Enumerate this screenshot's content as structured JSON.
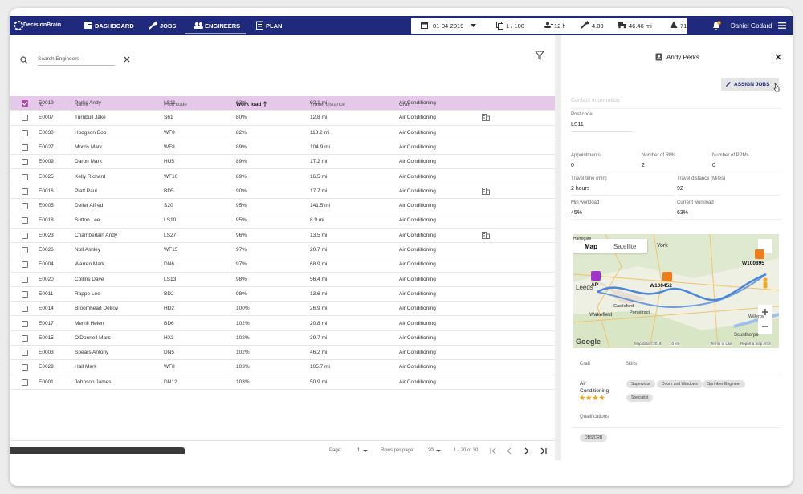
{
  "nav": {
    "brand": "DecisionBrain",
    "tabs": [
      "DASHBOARD",
      "JOBS",
      "ENGINEERS",
      "PLAN"
    ],
    "date": "01-04-2019",
    "jobs": "1 / 100",
    "hours": "12 h",
    "rating": "4.00",
    "distance": "46.46 mi",
    "alerts": "71",
    "user": "Daniel Godard"
  },
  "search": {
    "placeholder": "Search Engineers"
  },
  "table": {
    "columns": [
      "ID",
      "Name",
      "Post code",
      "Work load",
      "Travel distance",
      "Craft"
    ],
    "rows": [
      [
        "E0019",
        "Perks Andy",
        "LS11",
        "63%",
        "92.1 mi",
        "Air Conditioning"
      ],
      [
        "E0007",
        "Turnbull Jake",
        "S61",
        "80%",
        "12.8 mi",
        "Air Conditioning"
      ],
      [
        "E0030",
        "Hodgson Bob",
        "WF8",
        "82%",
        "118.2 mi",
        "Air Conditioning"
      ],
      [
        "E0027",
        "Morris Mark",
        "WF8",
        "89%",
        "104.9 mi",
        "Air Conditioning"
      ],
      [
        "E0009",
        "Daron Mark",
        "HU5",
        "89%",
        "17.2 mi",
        "Air Conditioning"
      ],
      [
        "E0025",
        "Kelly Richard",
        "WF10",
        "89%",
        "16.5 mi",
        "Air Conditioning"
      ],
      [
        "E0016",
        "Platt Paul",
        "BD5",
        "90%",
        "17.7 mi",
        "Air Conditioning"
      ],
      [
        "E0005",
        "Deller Alfred",
        "S20",
        "95%",
        "141.5 mi",
        "Air Conditioning"
      ],
      [
        "E0018",
        "Sutton Lee",
        "LS10",
        "95%",
        "8.9 mi",
        "Air Conditioning"
      ],
      [
        "E0023",
        "Chamberlain Andy",
        "LS27",
        "96%",
        "13.5 mi",
        "Air Conditioning"
      ],
      [
        "E0026",
        "Noll Ashley",
        "WF15",
        "97%",
        "20.7 mi",
        "Air Conditioning"
      ],
      [
        "E0004",
        "Warren Mark",
        "DN6",
        "97%",
        "68.9 mi",
        "Air Conditioning"
      ],
      [
        "E0020",
        "Collins Dave",
        "LS13",
        "98%",
        "56.4 mi",
        "Air Conditioning"
      ],
      [
        "E0011",
        "Rappe Lee",
        "BD2",
        "98%",
        "13.6 mi",
        "Air Conditioning"
      ],
      [
        "E0014",
        "Broomhead Delroy",
        "HD2",
        "100%",
        "26.9 mi",
        "Air Conditioning"
      ],
      [
        "E0017",
        "Merrill Helen",
        "BD6",
        "102%",
        "20.8 mi",
        "Air Conditioning"
      ],
      [
        "E0015",
        "O'Donnell Marc",
        "HX3",
        "102%",
        "39.7 mi",
        "Air Conditioning"
      ],
      [
        "E0003",
        "Spears Antony",
        "DN5",
        "102%",
        "46.2 mi",
        "Air Conditioning"
      ],
      [
        "E0029",
        "Hall Mark",
        "WF8",
        "103%",
        "105.7 mi",
        "Air Conditioning"
      ],
      [
        "E0001",
        "Johnson James",
        "DN12",
        "103%",
        "50.9 mi",
        "Air Conditioning"
      ]
    ]
  },
  "pagination": {
    "page_label": "Page:",
    "page": "1",
    "rows_label": "Rows per page:",
    "rows": "20",
    "range": "1 - 20 of 30"
  },
  "detail": {
    "name": "Andy Perks",
    "assign": "ASSIGN JOBS",
    "contact": "Contact information",
    "post_code": {
      "label": "Post code",
      "value": "LS11"
    },
    "stats": [
      {
        "label": "Appointments",
        "value": "0"
      },
      {
        "label": "Number of RMs",
        "value": "2"
      },
      {
        "label": "Number of PPMs",
        "value": "0"
      }
    ],
    "stats2": [
      {
        "label": "Travel time (min)",
        "value": "2 hours"
      },
      {
        "label": "Travel distance (Miles)",
        "value": "92"
      },
      {
        "label": "Min workload",
        "value": "45%"
      },
      {
        "label": "Current workload",
        "value": "63%"
      }
    ],
    "map": {
      "tabs": [
        "Map",
        "Satellite"
      ],
      "markers": [
        "W100895",
        "W100452",
        "AP"
      ],
      "places": [
        "Harrogate",
        "York",
        "Leeds",
        "Wakefield",
        "Castleford",
        "Pontefract",
        "Willerby",
        "Scunthorpe"
      ],
      "logo": "Google",
      "attribution": [
        "Map data ©2019",
        "10 km",
        "Terms of Use",
        "Report a map error"
      ]
    },
    "craft": {
      "label": "Craft",
      "value": "Air Conditioning"
    },
    "skills": {
      "label": "Skills",
      "items": [
        "Supervisor",
        "Doors and Windows",
        "Sprinkler Engineer",
        "Specialist"
      ]
    },
    "qualifications": {
      "label": "Qualifications",
      "items": [
        "DBS/CRB"
      ]
    }
  }
}
